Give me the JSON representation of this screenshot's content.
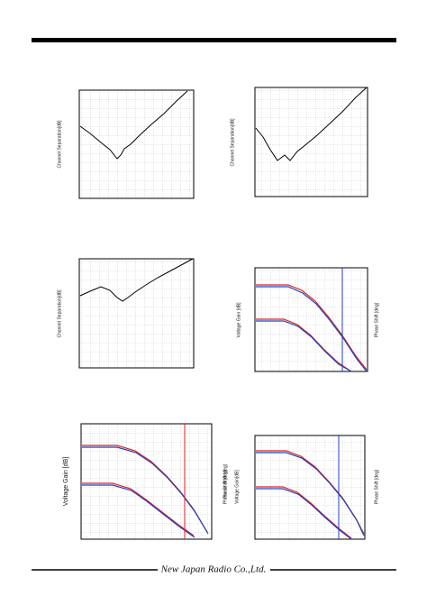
{
  "panels": [
    {
      "y_label": "Channel Separation[dB]"
    },
    {
      "y_label": "Channel Separation[dB]"
    },
    {
      "y_label": "Channel Separation[dB]"
    },
    {
      "y_label": "Voltage Gain [dB]",
      "y2_label": "Phase Shift [deg]"
    },
    {
      "y_label": "Voltage Gain [dB]",
      "y2_label": "Phase Shift [deg]"
    },
    {
      "y_label": "Voltage Gain[dB]",
      "y2_label": "Phase Shift [deg]",
      "y3_label": "Phase Shift [deg]"
    }
  ],
  "footer": "New Japan Radio Co.,Ltd."
}
